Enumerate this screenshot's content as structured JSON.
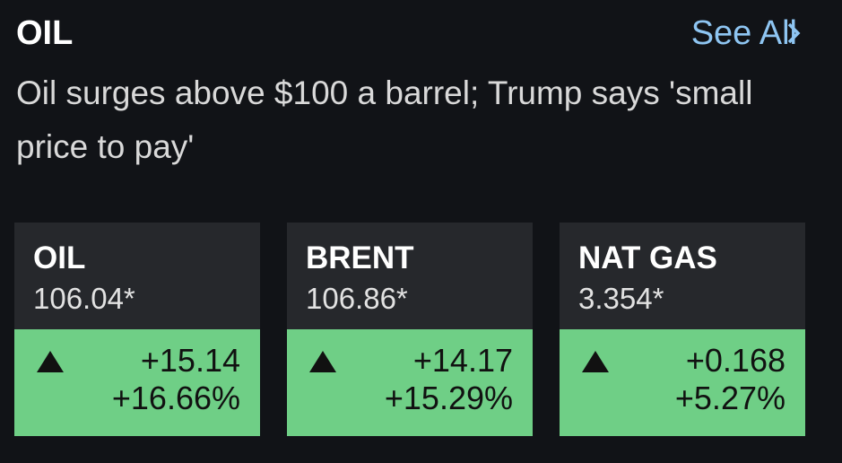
{
  "header": {
    "title": "OIL",
    "link": "See All"
  },
  "headline": "Oil surges above $100 a barrel; Trump says 'small price to pay'",
  "cards": [
    {
      "name": "OIL",
      "price": "106.04*",
      "change": "+15.14",
      "percent": "+16.66%"
    },
    {
      "name": "BRENT",
      "price": "106.86*",
      "change": "+14.17",
      "percent": "+15.29%"
    },
    {
      "name": "NAT GAS",
      "price": "3.354*",
      "change": "+0.168",
      "percent": "+5.27%"
    }
  ]
}
